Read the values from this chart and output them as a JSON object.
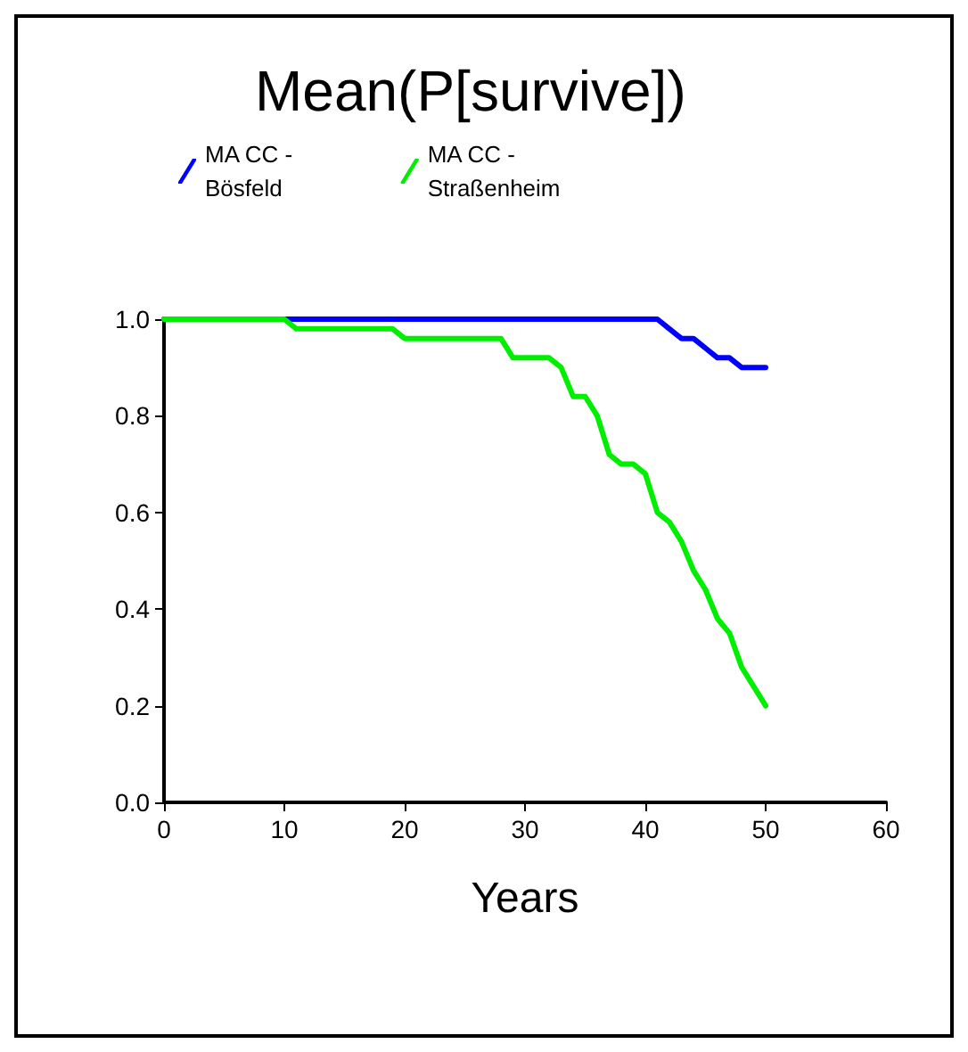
{
  "chart_data": {
    "type": "line",
    "title": "Mean(P[survive])",
    "xlabel": "Years",
    "xlim": [
      0,
      60
    ],
    "xticks": [
      0,
      10,
      20,
      30,
      40,
      50,
      60
    ],
    "ylim": [
      0,
      1
    ],
    "yticks": [
      {
        "value": 0,
        "label": "0.0"
      },
      {
        "value": 0.2,
        "label": "0.2"
      },
      {
        "value": 0.4,
        "label": "0.4"
      },
      {
        "value": 0.6,
        "label": "0.6"
      },
      {
        "value": 0.8,
        "label": "0.8"
      },
      {
        "value": 1,
        "label": "1.0"
      }
    ],
    "grid": false,
    "legend": "top",
    "marker": "none",
    "line_style": "solid",
    "series": [
      {
        "name": "MA CC -\nBösfeld",
        "color": "#0000ff",
        "x": [
          0,
          41,
          42,
          43,
          44,
          45,
          46,
          47,
          48,
          50
        ],
        "values": [
          1,
          1,
          0.98,
          0.96,
          0.96,
          0.94,
          0.92,
          0.92,
          0.9,
          0.9
        ]
      },
      {
        "name": "MA CC -\nStraßenheim",
        "color": "#00ee00",
        "x": [
          0,
          10,
          11,
          19,
          20,
          28,
          29,
          32,
          33,
          34,
          35,
          36,
          37,
          38,
          39,
          40,
          41,
          42,
          43,
          44,
          45,
          46,
          47,
          48,
          49,
          50
        ],
        "values": [
          1,
          1,
          0.98,
          0.98,
          0.96,
          0.96,
          0.92,
          0.92,
          0.9,
          0.84,
          0.84,
          0.8,
          0.72,
          0.7,
          0.7,
          0.68,
          0.6,
          0.58,
          0.54,
          0.48,
          0.44,
          0.38,
          0.35,
          0.28,
          0.24,
          0.2
        ]
      }
    ]
  }
}
